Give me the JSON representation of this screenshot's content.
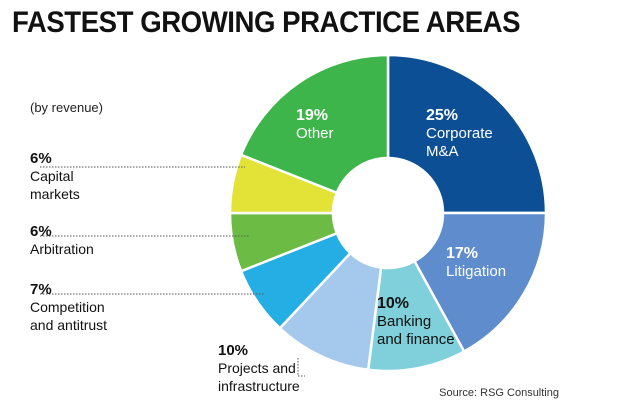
{
  "title": "FASTEST GROWING PRACTICE AREAS",
  "subtitle": "(by revenue)",
  "source": "Source: RSG Consulting",
  "chart_data": {
    "type": "pie",
    "style": "donut",
    "slices": [
      {
        "name_lines": [
          "Corporate",
          "M&A"
        ],
        "value": 25,
        "label": "25%",
        "color": "#0d4f94"
      },
      {
        "name_lines": [
          "Litigation"
        ],
        "value": 17,
        "label": "17%",
        "color": "#5f8ccd"
      },
      {
        "name_lines": [
          "Banking",
          "and finance"
        ],
        "value": 10,
        "label": "10%",
        "color": "#7fd0da"
      },
      {
        "name_lines": [
          "Projects and",
          "infrastructure"
        ],
        "value": 10,
        "label": "10%",
        "color": "#a4c9ec"
      },
      {
        "name_lines": [
          "Competition",
          "and antitrust"
        ],
        "value": 7,
        "label": "7%",
        "color": "#25aee3"
      },
      {
        "name_lines": [
          "Arbitration"
        ],
        "value": 6,
        "label": "6%",
        "color": "#6cbb45"
      },
      {
        "name_lines": [
          "Capital",
          "markets"
        ],
        "value": 6,
        "label": "6%",
        "color": "#e2e336"
      },
      {
        "name_lines": [
          "Other"
        ],
        "value": 19,
        "label": "19%",
        "color": "#3db54a"
      }
    ]
  }
}
